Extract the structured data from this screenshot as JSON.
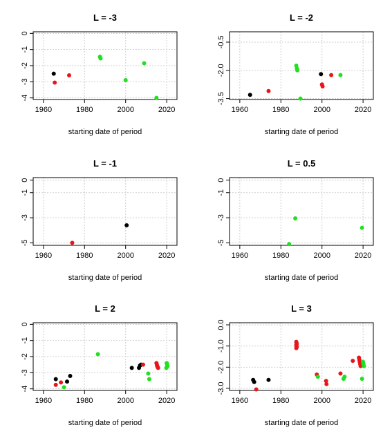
{
  "colors": {
    "black": "#000000",
    "red": "#e8161b",
    "green": "#20e020",
    "grid": "#cfcfcf",
    "frame": "#000000"
  },
  "chart_data": [
    {
      "type": "scatter",
      "title": "L = -3",
      "xlabel": "starting date of period",
      "ylabel": "",
      "xlim": [
        1955,
        2025
      ],
      "ylim": [
        -4.1,
        0.1
      ],
      "grid": true,
      "xticks": [
        1960,
        1980,
        2000,
        2020
      ],
      "xtick_labels": [
        "1960",
        "1980",
        "2000",
        "2020"
      ],
      "yticks": [
        0,
        -1,
        -2,
        -3,
        -4
      ],
      "ytick_labels": [
        "0",
        "-1",
        "-2",
        "-3",
        "-4"
      ],
      "series": [
        {
          "color": "black",
          "points": [
            [
              1965,
              -2.5
            ]
          ]
        },
        {
          "color": "red",
          "points": [
            [
              1965.5,
              -3.05
            ],
            [
              1972.5,
              -2.6
            ]
          ]
        },
        {
          "color": "green",
          "points": [
            [
              1987.5,
              -1.45
            ],
            [
              1987.8,
              -1.55
            ],
            [
              2000,
              -2.9
            ],
            [
              2009,
              -1.85
            ],
            [
              2015,
              -4.0
            ]
          ]
        }
      ]
    },
    {
      "type": "scatter",
      "title": "L = -2",
      "xlabel": "starting date of period",
      "ylabel": "",
      "xlim": [
        1955,
        2025
      ],
      "ylim": [
        -3.55,
        0.05
      ],
      "grid": true,
      "xticks": [
        1960,
        1980,
        2000,
        2020
      ],
      "xtick_labels": [
        "1960",
        "1980",
        "2000",
        "2020"
      ],
      "yticks": [
        -0.5,
        -2,
        -3.5
      ],
      "ytick_labels": [
        "-0.5",
        "-2.0",
        "-3.5"
      ],
      "series": [
        {
          "color": "black",
          "points": [
            [
              1965,
              -3.3
            ],
            [
              1999.5,
              -2.2
            ]
          ]
        },
        {
          "color": "red",
          "points": [
            [
              1974,
              -3.1
            ],
            [
              2000,
              -2.75
            ],
            [
              2000.3,
              -2.85
            ],
            [
              2004.5,
              -2.25
            ]
          ]
        },
        {
          "color": "green",
          "points": [
            [
              1987.5,
              -1.75
            ],
            [
              1987.8,
              -1.9
            ],
            [
              1988,
              -2.0
            ],
            [
              1989.5,
              -3.5
            ],
            [
              2009,
              -2.25
            ]
          ]
        }
      ]
    },
    {
      "type": "scatter",
      "title": "L = -1",
      "xlabel": "starting date of period",
      "ylabel": "",
      "xlim": [
        1955,
        2025
      ],
      "ylim": [
        -5.2,
        0.2
      ],
      "grid": true,
      "xticks": [
        1960,
        1980,
        2000,
        2020
      ],
      "xtick_labels": [
        "1960",
        "1980",
        "2000",
        "2020"
      ],
      "yticks": [
        0,
        -1,
        -3,
        -5
      ],
      "ytick_labels": [
        "0",
        "-1",
        "-3",
        "-5"
      ],
      "series": [
        {
          "color": "black",
          "points": [
            [
              2000.5,
              -3.6
            ]
          ]
        },
        {
          "color": "red",
          "points": [
            [
              1974,
              -5.0
            ]
          ]
        },
        {
          "color": "green",
          "points": []
        }
      ]
    },
    {
      "type": "scatter",
      "title": "L = 0.5",
      "xlabel": "starting date of period",
      "ylabel": "",
      "xlim": [
        1955,
        2025
      ],
      "ylim": [
        -5.2,
        0.2
      ],
      "grid": true,
      "xticks": [
        1960,
        1980,
        2000,
        2020
      ],
      "xtick_labels": [
        "1960",
        "1980",
        "2000",
        "2020"
      ],
      "yticks": [
        0,
        -1,
        -3,
        -5
      ],
      "ytick_labels": [
        "0",
        "-1",
        "-3",
        "-5"
      ],
      "series": [
        {
          "color": "black",
          "points": []
        },
        {
          "color": "red",
          "points": []
        },
        {
          "color": "green",
          "points": [
            [
              1984,
              -5.1
            ],
            [
              1987,
              -3.05
            ],
            [
              2019.5,
              -3.8
            ]
          ]
        }
      ]
    },
    {
      "type": "scatter",
      "title": "L = 2",
      "xlabel": "starting date of period",
      "ylabel": "",
      "xlim": [
        1955,
        2025
      ],
      "ylim": [
        -4.1,
        0.1
      ],
      "grid": true,
      "xticks": [
        1960,
        1980,
        2000,
        2020
      ],
      "xtick_labels": [
        "1960",
        "1980",
        "2000",
        "2020"
      ],
      "yticks": [
        0,
        -1,
        -2,
        -3,
        -4
      ],
      "ytick_labels": [
        "0",
        "-1",
        "-2",
        "-3",
        "-4"
      ],
      "series": [
        {
          "color": "black",
          "points": [
            [
              1966,
              -3.4
            ],
            [
              1971.5,
              -3.55
            ],
            [
              1973,
              -3.2
            ],
            [
              2003,
              -2.7
            ],
            [
              2006.5,
              -2.7
            ],
            [
              2007,
              -2.55
            ],
            [
              2007.5,
              -2.5
            ]
          ]
        },
        {
          "color": "red",
          "points": [
            [
              1966,
              -3.75
            ],
            [
              1968.5,
              -3.6
            ],
            [
              2008.5,
              -2.5
            ],
            [
              2015,
              -2.4
            ],
            [
              2015.2,
              -2.5
            ],
            [
              2015.4,
              -2.6
            ],
            [
              2015.6,
              -2.65
            ],
            [
              2015.8,
              -2.7
            ]
          ]
        },
        {
          "color": "green",
          "points": [
            [
              1970,
              -3.9
            ],
            [
              1986.5,
              -1.85
            ],
            [
              2011,
              -3.05
            ],
            [
              2011.5,
              -3.4
            ],
            [
              2020,
              -2.4
            ],
            [
              2020.2,
              -2.5
            ],
            [
              2020.4,
              -2.6
            ],
            [
              2019.8,
              -2.7
            ]
          ]
        }
      ]
    },
    {
      "type": "scatter",
      "title": "L = 3",
      "xlabel": "starting date of period",
      "ylabel": "",
      "xlim": [
        1955,
        2025
      ],
      "ylim": [
        -3.1,
        0.1
      ],
      "grid": true,
      "xticks": [
        1960,
        1980,
        2000,
        2020
      ],
      "xtick_labels": [
        "1960",
        "1980",
        "2000",
        "2020"
      ],
      "yticks": [
        0,
        -1,
        -2,
        -3
      ],
      "ytick_labels": [
        "0.0",
        "-1.0",
        "-2.0",
        "-3.0"
      ],
      "series": [
        {
          "color": "black",
          "points": [
            [
              1966.5,
              -2.6
            ],
            [
              1967,
              -2.7
            ],
            [
              1974,
              -2.6
            ]
          ]
        },
        {
          "color": "red",
          "points": [
            [
              1968,
              -3.05
            ],
            [
              1987.5,
              -0.8
            ],
            [
              1987.6,
              -0.85
            ],
            [
              1987.7,
              -0.9
            ],
            [
              1987.5,
              -0.95
            ],
            [
              1987.6,
              -1.0
            ],
            [
              1987.7,
              -1.05
            ],
            [
              1987.5,
              -1.1
            ],
            [
              1997.5,
              -2.35
            ],
            [
              2002,
              -2.65
            ],
            [
              2002.2,
              -2.8
            ],
            [
              2009,
              -2.3
            ],
            [
              2015,
              -1.7
            ],
            [
              2018,
              -1.55
            ],
            [
              2018.2,
              -1.65
            ],
            [
              2018.4,
              -1.75
            ],
            [
              2018.6,
              -1.85
            ],
            [
              2018.8,
              -1.95
            ]
          ]
        },
        {
          "color": "green",
          "points": [
            [
              1998,
              -2.45
            ],
            [
              2010.5,
              -2.55
            ],
            [
              2011,
              -2.45
            ],
            [
              2019.5,
              -2.55
            ],
            [
              2020,
              -1.75
            ],
            [
              2020.2,
              -1.85
            ],
            [
              2020.4,
              -1.95
            ]
          ]
        }
      ]
    }
  ]
}
